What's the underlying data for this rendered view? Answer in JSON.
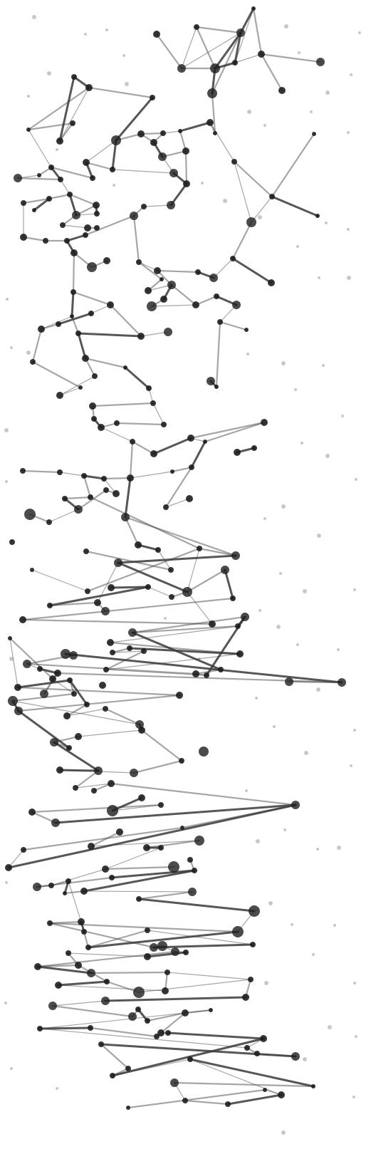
{
  "colors": {
    "background": "#ffffff",
    "node": "#1e1e1e",
    "edge": "#3a3a3a",
    "speck": "#9a9a9a"
  },
  "illustration": {
    "kind": "abstract node-link network illustration",
    "visible_text": []
  }
}
